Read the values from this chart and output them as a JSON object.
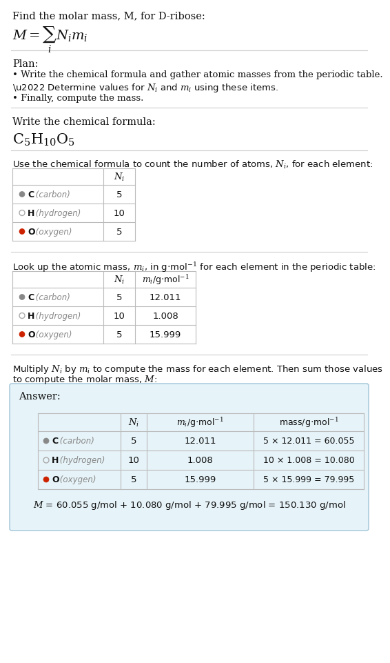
{
  "title_line": "Find the molar mass, M, for D-ribose:",
  "bg_color": "#ffffff",
  "section_line_color": "#cccccc",
  "plan_header": "Plan:",
  "plan_bullets": [
    "• Write the chemical formula and gather atomic masses from the periodic table.",
    "• Determine values for Nᵢ and mᵢ using these items.",
    "• Finally, compute the mass."
  ],
  "formula_header": "Write the chemical formula:",
  "table1_header": "Use the chemical formula to count the number of atoms, Nᵢ, for each element:",
  "table2_header": "Look up the atomic mass, mᵢ, in g·mol⁻¹ for each element in the periodic table:",
  "table3_header_line1": "Multiply Nᵢ by mᵢ to compute the mass for each element. Then sum those values",
  "table3_header_line2": "to compute the molar mass, M:",
  "elem_symbols": [
    "C",
    "H",
    "O"
  ],
  "elem_labels": [
    "(carbon)",
    "(hydrogen)",
    "(oxygen)"
  ],
  "N_i": [
    5,
    10,
    5
  ],
  "m_i": [
    12.011,
    1.008,
    15.999
  ],
  "mass_strings": [
    "5 × 12.011 = 60.055",
    "10 × 1.008 = 10.080",
    "5 × 15.999 = 79.995"
  ],
  "dot_color_C": "#888888",
  "dot_color_H_edge": "#aaaaaa",
  "dot_color_O": "#cc2200",
  "answer_bg": "#e6f3f8",
  "answer_border": "#a0c4d8",
  "final_equation": "$M$ = 60.055 g/mol + 10.080 g/mol + 79.995 g/mol = 150.130 g/mol",
  "answer_label": "Answer:",
  "table_border_color": "#bbbbbb",
  "text_color": "#111111",
  "gray_text": "#888888"
}
